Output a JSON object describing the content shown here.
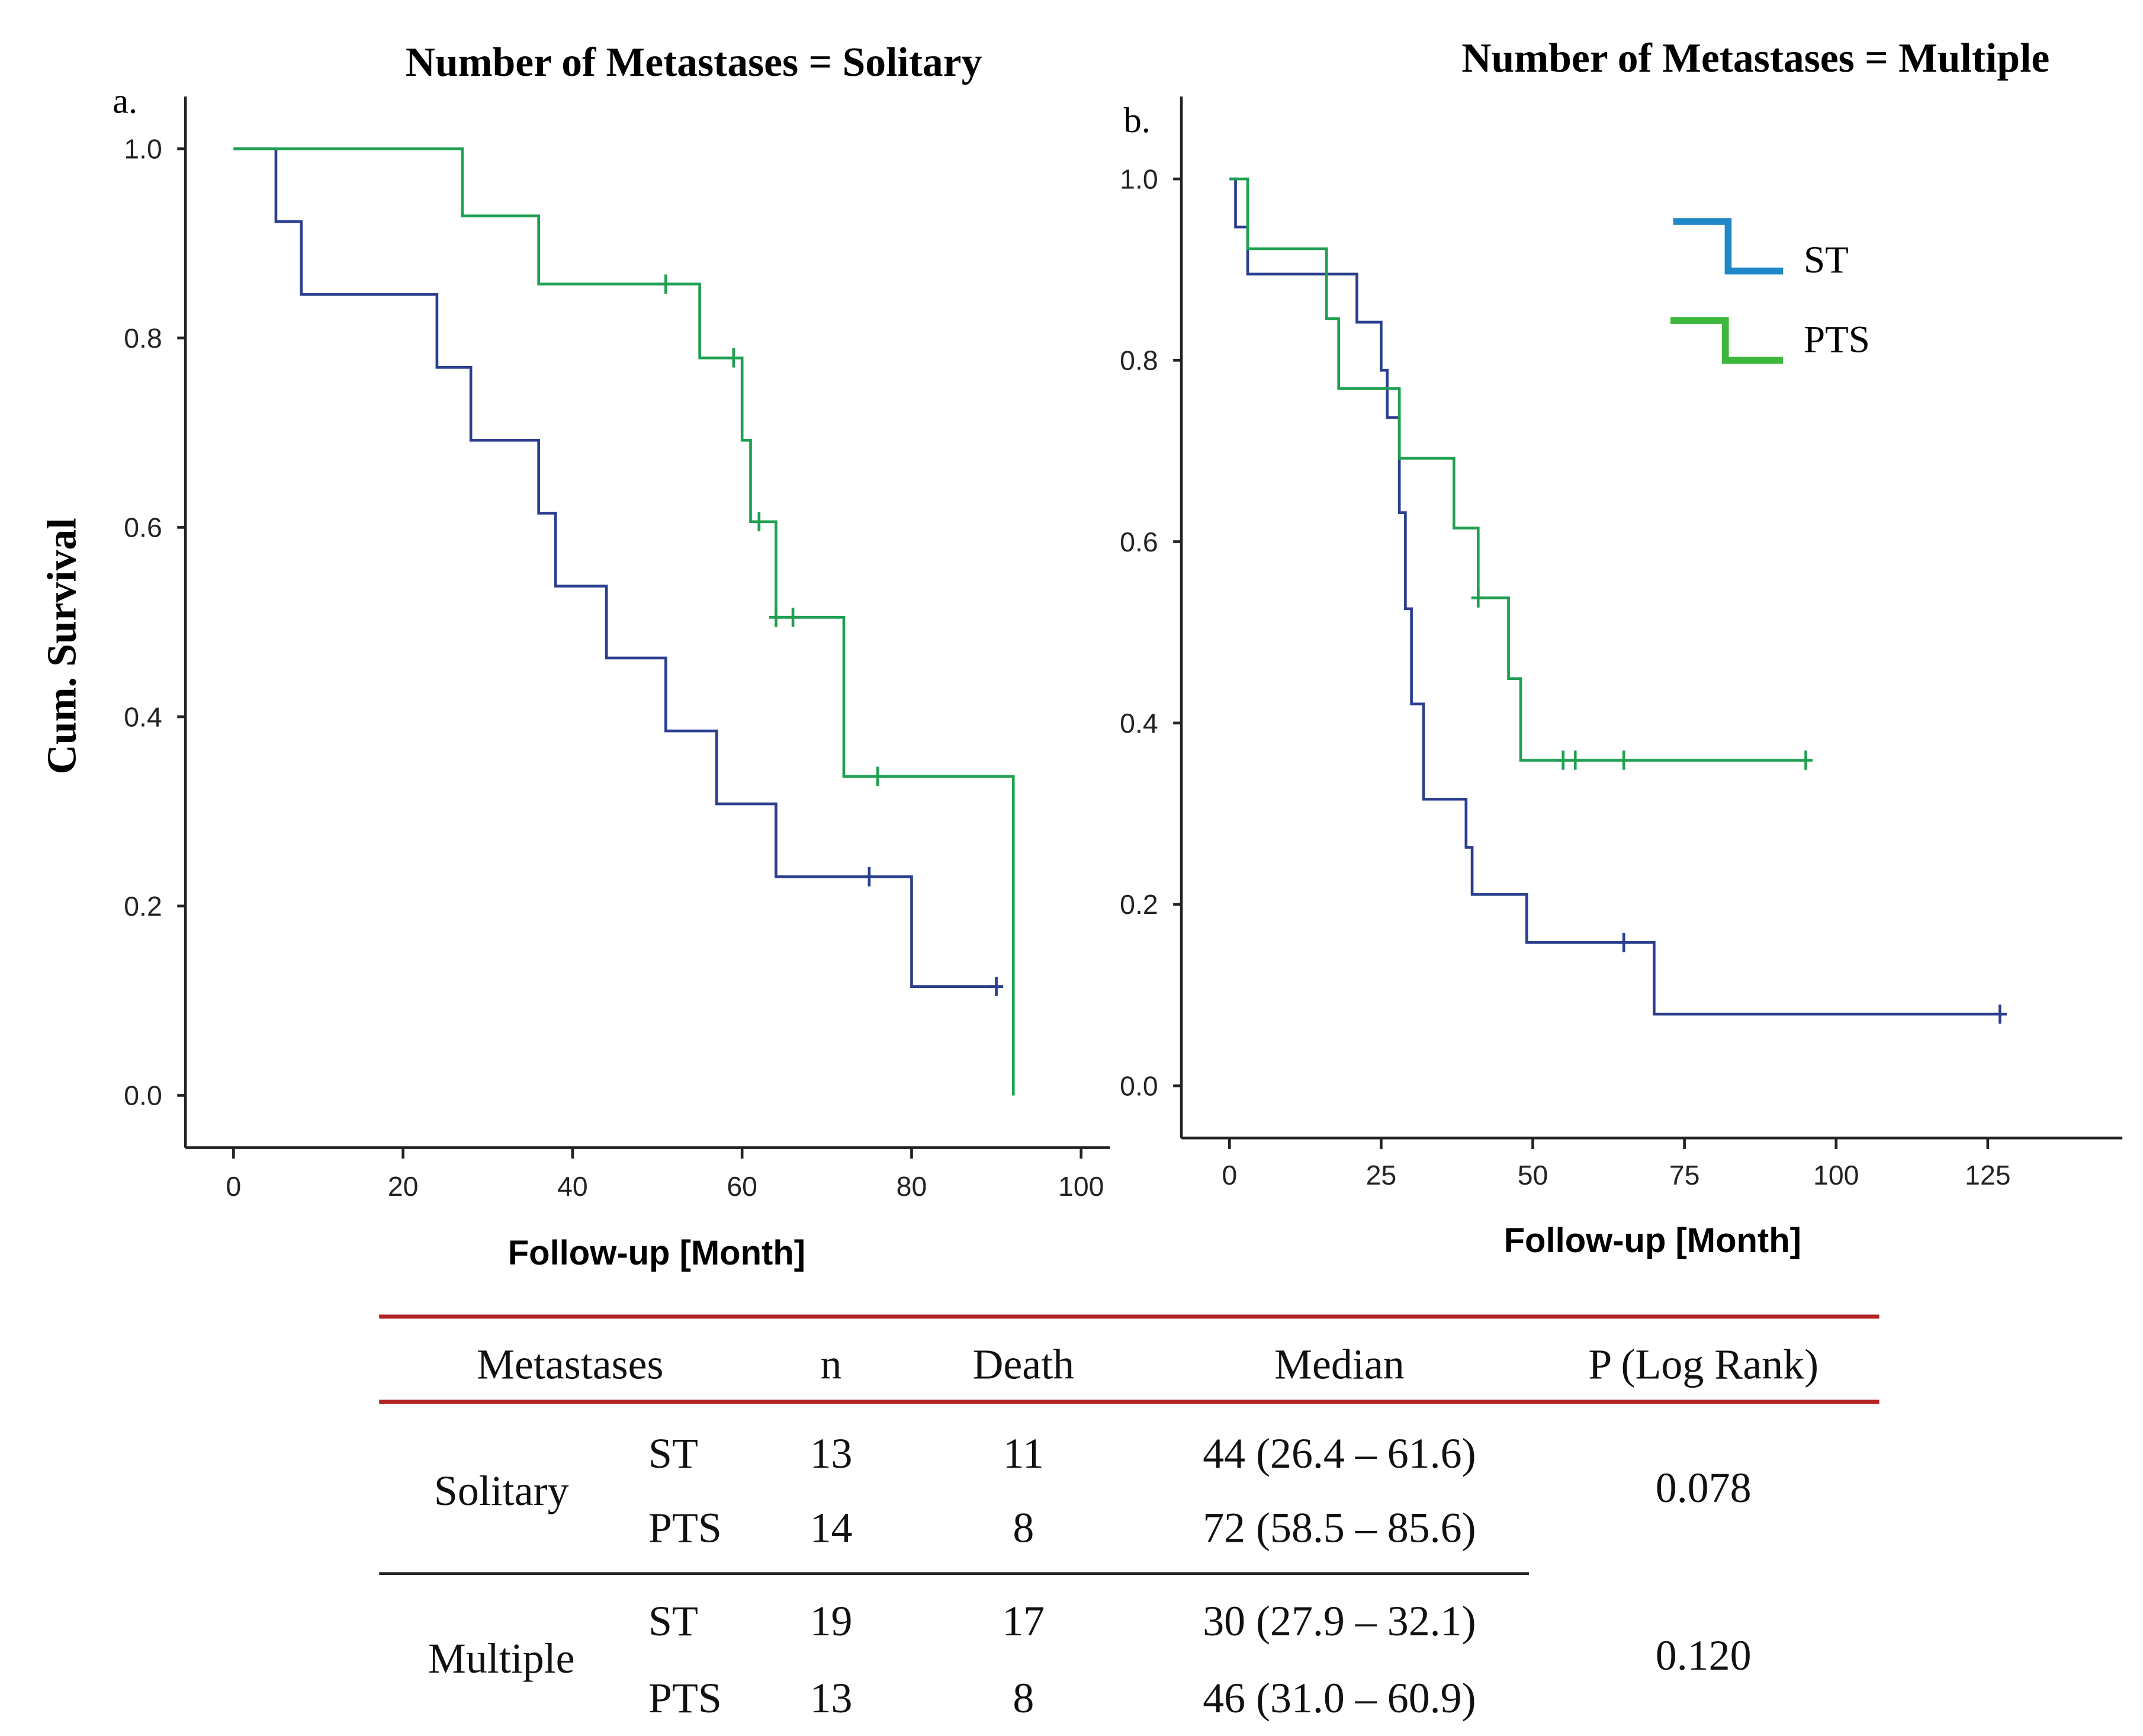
{
  "chart_data": [
    {
      "type": "line",
      "subtype": "kaplan-meier",
      "panel_label": "a.",
      "title": "Number of Metastases = Solitary",
      "xlabel": "Follow-up [Month]",
      "ylabel": "Cum. Survival",
      "xlim": [
        0,
        100
      ],
      "ylim": [
        0,
        1
      ],
      "xticks": [
        "0",
        "20",
        "40",
        "60",
        "80",
        "100"
      ],
      "yticks": [
        "0.0",
        "0.2",
        "0.4",
        "0.6",
        "0.8",
        "1.0"
      ],
      "grid": false,
      "series": [
        {
          "name": "ST",
          "color": "#2b3f8f",
          "steps": [
            [
              0,
              1.0
            ],
            [
              5,
              0.923
            ],
            [
              8,
              0.846
            ],
            [
              24,
              0.769
            ],
            [
              28,
              0.692
            ],
            [
              36,
              0.615
            ],
            [
              38,
              0.538
            ],
            [
              44,
              0.462
            ],
            [
              51,
              0.385
            ],
            [
              57,
              0.308
            ],
            [
              64,
              0.231
            ],
            [
              80,
              0.115
            ]
          ],
          "end": 90,
          "censored": [
            75,
            90
          ]
        },
        {
          "name": "PTS",
          "color": "#1fa050",
          "steps": [
            [
              0,
              1.0
            ],
            [
              27,
              0.929
            ],
            [
              36,
              0.857
            ],
            [
              55,
              0.779
            ],
            [
              60,
              0.692
            ],
            [
              61,
              0.606
            ],
            [
              64,
              0.505
            ],
            [
              72,
              0.337
            ],
            [
              92,
              0.0
            ]
          ],
          "end": 92,
          "censored": [
            51,
            59,
            62,
            64,
            66,
            76
          ]
        }
      ]
    },
    {
      "type": "line",
      "subtype": "kaplan-meier",
      "panel_label": "b.",
      "title": "Number of Metastases = Multiple",
      "xlabel": "Follow-up [Month]",
      "ylabel": "",
      "xlim": [
        0,
        125
      ],
      "ylim": [
        0,
        1
      ],
      "xticks": [
        "0",
        "25",
        "50",
        "75",
        "100",
        "125"
      ],
      "yticks": [
        "0.0",
        "0.2",
        "0.4",
        "0.6",
        "0.8",
        "1.0"
      ],
      "grid": false,
      "legend": {
        "position": "top-right",
        "entries": [
          {
            "label": "ST",
            "color": "#1e88c8"
          },
          {
            "label": "PTS",
            "color": "#3cb83c"
          }
        ]
      },
      "series": [
        {
          "name": "ST",
          "color": "#2b3f8f",
          "steps": [
            [
              0,
              1.0
            ],
            [
              1,
              0.947
            ],
            [
              3,
              0.895
            ],
            [
              21,
              0.842
            ],
            [
              25,
              0.789
            ],
            [
              26,
              0.737
            ],
            [
              28,
              0.632
            ],
            [
              29,
              0.526
            ],
            [
              30,
              0.421
            ],
            [
              32,
              0.316
            ],
            [
              39,
              0.263
            ],
            [
              40,
              0.211
            ],
            [
              49,
              0.158
            ],
            [
              70,
              0.079
            ]
          ],
          "end": 127,
          "censored": [
            65,
            127
          ]
        },
        {
          "name": "PTS",
          "color": "#1fa050",
          "steps": [
            [
              0,
              1.0
            ],
            [
              3,
              0.923
            ],
            [
              16,
              0.846
            ],
            [
              18,
              0.769
            ],
            [
              28,
              0.692
            ],
            [
              37,
              0.615
            ],
            [
              41,
              0.538
            ],
            [
              46,
              0.449
            ],
            [
              48,
              0.359
            ]
          ],
          "end": 95,
          "censored": [
            41,
            55,
            57,
            65,
            95
          ]
        }
      ]
    }
  ],
  "table": {
    "headers": [
      "Metastases",
      "n",
      "Death",
      "Median",
      "P (Log Rank)"
    ],
    "groups": [
      {
        "label": "Solitary",
        "p": "0.078",
        "rows": [
          {
            "arm": "ST",
            "n": "13",
            "death": "11",
            "median": "44 (26.4 – 61.6)"
          },
          {
            "arm": "PTS",
            "n": "14",
            "death": "8",
            "median": "72 (58.5 – 85.6)"
          }
        ]
      },
      {
        "label": "Multiple",
        "p": "0.120",
        "rows": [
          {
            "arm": "ST",
            "n": "19",
            "death": "17",
            "median": "30 (27.9 – 32.1)"
          },
          {
            "arm": "PTS",
            "n": "13",
            "death": "8",
            "median": "46 (31.0 – 60.9)"
          }
        ]
      }
    ],
    "rule_color": "#b22222"
  }
}
